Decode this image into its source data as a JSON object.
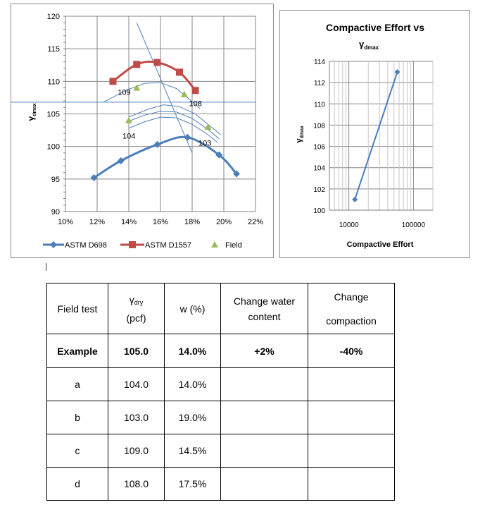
{
  "colors": {
    "d698": "#4a7ebb",
    "d1557": "#be4b48",
    "field": "#9bbb59",
    "helper": "#4f81bd",
    "axis": "#7f7f7f",
    "grid": "#868686"
  },
  "chart_data": [
    {
      "type": "line",
      "ylabel": "γdmax",
      "ylabel_base": "γ",
      "ylabel_sub": "dmax",
      "xlim": [
        0.1,
        0.22
      ],
      "ylim": [
        90,
        120
      ],
      "x_ticks": [
        "10%",
        "12%",
        "14%",
        "16%",
        "18%",
        "20%",
        "22%"
      ],
      "y_ticks": [
        "90",
        "95",
        "100",
        "105",
        "110",
        "115",
        "120"
      ],
      "series": [
        {
          "name": "ASTM D698",
          "marker": "diamond",
          "x": [
            0.118,
            0.135,
            0.158,
            0.177,
            0.197,
            0.208
          ],
          "y": [
            95.2,
            97.8,
            100.3,
            101.4,
            98.7,
            95.8
          ]
        },
        {
          "name": "ASTM D1557",
          "marker": "square",
          "x": [
            0.13,
            0.145,
            0.158,
            0.172,
            0.182
          ],
          "y": [
            110.0,
            112.6,
            112.9,
            111.4,
            108.6
          ]
        },
        {
          "name": "Field",
          "marker": "triangle",
          "x": [
            0.14,
            0.19,
            0.145,
            0.175
          ],
          "y": [
            104.0,
            103.0,
            109.0,
            108.0
          ]
        }
      ],
      "point_labels": [
        {
          "text": "109",
          "x": 0.133,
          "y": 107.9
        },
        {
          "text": "108",
          "x": 0.178,
          "y": 106.2
        },
        {
          "text": "104",
          "x": 0.136,
          "y": 101.2
        },
        {
          "text": "103",
          "x": 0.184,
          "y": 100.1
        }
      ],
      "helper_lines": {
        "horizontal_y": 106.8,
        "steep_line": [
          [
            0.145,
            119.0
          ],
          [
            0.18,
            99.0
          ]
        ],
        "arcs": [
          [
            [
              0.124,
              106.8
            ],
            [
              0.138,
              108.6
            ],
            [
              0.15,
              109.7
            ],
            [
              0.16,
              109.8
            ],
            [
              0.17,
              108.9
            ],
            [
              0.18,
              106.9
            ],
            [
              0.185,
              105.8
            ]
          ],
          [
            [
              0.14,
              104.5
            ],
            [
              0.152,
              105.7
            ],
            [
              0.162,
              106.4
            ],
            [
              0.172,
              106.1
            ],
            [
              0.182,
              105.0
            ],
            [
              0.192,
              103.0
            ],
            [
              0.198,
              101.8
            ]
          ],
          [
            [
              0.139,
              103.8
            ],
            [
              0.15,
              104.8
            ],
            [
              0.16,
              105.4
            ],
            [
              0.17,
              105.3
            ],
            [
              0.18,
              104.3
            ],
            [
              0.19,
              102.6
            ],
            [
              0.197,
              101.2
            ]
          ],
          [
            [
              0.14,
              102.8
            ],
            [
              0.15,
              103.8
            ],
            [
              0.16,
              104.5
            ],
            [
              0.17,
              104.4
            ],
            [
              0.18,
              103.4
            ],
            [
              0.19,
              101.8
            ],
            [
              0.196,
              100.6
            ]
          ]
        ]
      },
      "legend": [
        "ASTM D698",
        "ASTM D1557",
        "Field"
      ],
      "legend_position": "bottom"
    },
    {
      "type": "line",
      "title_line1": "Compactive Effort vs",
      "title_line2_base": "γ",
      "title_line2_sub": "dmax",
      "xlabel": "Compactive Effort",
      "ylabel_base": "γ",
      "ylabel_sub": "dmax",
      "x_scale": "log",
      "xlim": [
        5000,
        200000
      ],
      "ylim": [
        100,
        114
      ],
      "x_ticks": [
        "10000",
        "100000"
      ],
      "x_tick_values": [
        10000,
        100000
      ],
      "y_ticks": [
        "100",
        "102",
        "104",
        "106",
        "108",
        "110",
        "112",
        "114"
      ],
      "series": [
        {
          "name": "Compactive Effort",
          "marker": "diamond",
          "x": [
            12375,
            56250
          ],
          "y": [
            101,
            113
          ]
        }
      ]
    }
  ],
  "table": {
    "header": {
      "field_test": "Field test",
      "gamma_base": "γ",
      "gamma_sub": "dry",
      "gamma_unit": "(pcf)",
      "w": "w (%)",
      "change_water": "Change water content",
      "change_compaction_line1": "Change",
      "change_compaction_line2": "compaction"
    },
    "rows": [
      {
        "label": "Example",
        "gamma": "105.0",
        "w": "14.0%",
        "water": "+2%",
        "compaction": "-40%"
      },
      {
        "label": "a",
        "gamma": "104.0",
        "w": "14.0%",
        "water": "",
        "compaction": ""
      },
      {
        "label": "b",
        "gamma": "103.0",
        "w": "19.0%",
        "water": "",
        "compaction": ""
      },
      {
        "label": "c",
        "gamma": "109.0",
        "w": "14.5%",
        "water": "",
        "compaction": ""
      },
      {
        "label": "d",
        "gamma": "108.0",
        "w": "17.5%",
        "water": "",
        "compaction": ""
      }
    ]
  }
}
